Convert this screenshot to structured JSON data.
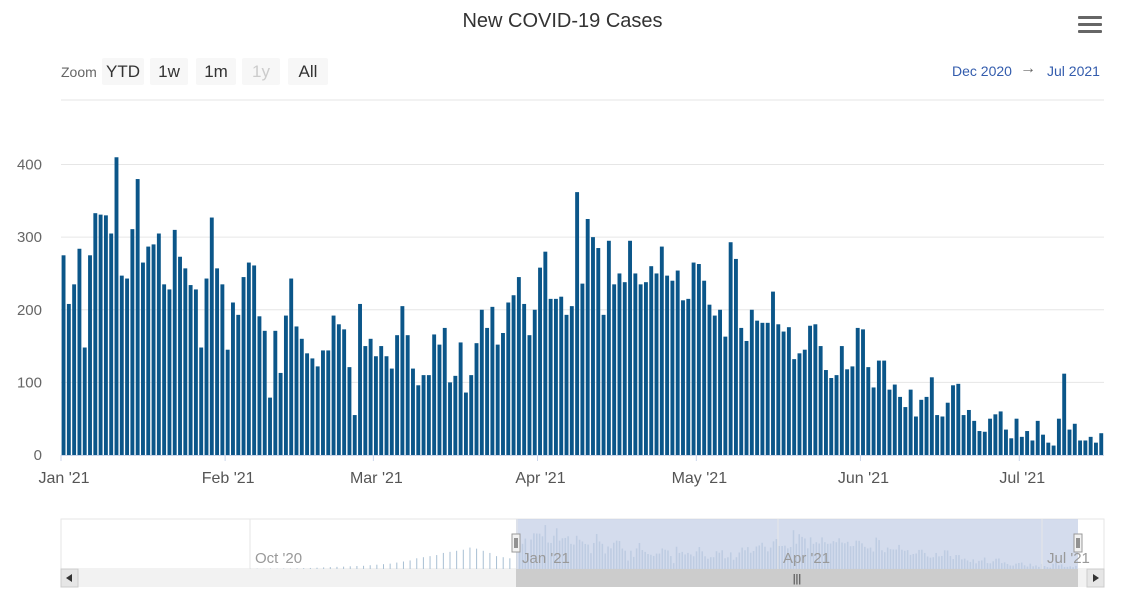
{
  "title": "New COVID-19 Cases",
  "icons": {
    "menu": "hamburger-menu-icon"
  },
  "range_selector": {
    "zoom_label": "Zoom",
    "buttons": [
      {
        "label": "YTD",
        "enabled": true
      },
      {
        "label": "1w",
        "enabled": true
      },
      {
        "label": "1m",
        "enabled": true
      },
      {
        "label": "1y",
        "enabled": false
      },
      {
        "label": "All",
        "enabled": true
      }
    ],
    "from": "Dec 2020",
    "arrow": "→",
    "to": "Jul 2021"
  },
  "navigator": {
    "labels": [
      "Oct '20",
      "Jan '21",
      "Apr '21",
      "Jul '21"
    ],
    "handle_glyph": "|||"
  },
  "colors": {
    "bar": "#0b5689",
    "grid": "#e6e6e6",
    "nav_mask": "#c6d0e7",
    "nav_bars": "#a8bfd3",
    "scrollbar_track": "#f2f2f2",
    "scrollbar_thumb": "#cccccc"
  },
  "chart_data": {
    "type": "bar",
    "series_start_date": "2021-01-01",
    "ylim": [
      0,
      420
    ],
    "yticks": [
      0,
      100,
      200,
      300,
      400
    ],
    "xticks": [
      "Jan '21",
      "Feb '21",
      "Mar '21",
      "Apr '21",
      "May '21",
      "Jun '21",
      "Jul '21"
    ],
    "values": [
      275,
      208,
      235,
      284,
      148,
      275,
      333,
      331,
      330,
      305,
      410,
      247,
      243,
      311,
      380,
      265,
      287,
      290,
      305,
      235,
      228,
      310,
      273,
      257,
      234,
      228,
      148,
      243,
      327,
      257,
      235,
      145,
      210,
      193,
      245,
      265,
      261,
      191,
      171,
      79,
      171,
      113,
      192,
      243,
      177,
      160,
      140,
      133,
      122,
      144,
      144,
      192,
      180,
      173,
      121,
      55,
      208,
      150,
      160,
      136,
      150,
      136,
      119,
      165,
      205,
      165,
      119,
      96,
      110,
      110,
      166,
      152,
      175,
      100,
      109,
      155,
      86,
      110,
      154,
      200,
      175,
      204,
      152,
      168,
      210,
      220,
      245,
      208,
      165,
      200,
      258,
      280,
      215,
      215,
      218,
      193,
      205,
      362,
      236,
      325,
      300,
      285,
      193,
      295,
      235,
      250,
      238,
      295,
      250,
      235,
      238,
      260,
      250,
      287,
      247,
      240,
      254,
      213,
      215,
      265,
      263,
      240,
      207,
      192,
      200,
      163,
      293,
      270,
      175,
      157,
      200,
      185,
      182,
      182,
      225,
      180,
      170,
      176,
      132,
      140,
      145,
      178,
      180,
      150,
      117,
      106,
      110,
      150,
      118,
      122,
      175,
      173,
      121,
      93,
      130,
      130,
      90,
      97,
      80,
      66,
      90,
      53,
      76,
      80,
      107,
      55,
      53,
      72,
      96,
      98,
      55,
      62,
      47,
      33,
      32,
      50,
      56,
      60,
      35,
      23,
      50,
      25,
      33,
      20,
      47,
      28,
      17,
      13,
      50,
      112,
      35,
      43,
      20,
      20,
      25,
      17,
      30
    ]
  }
}
